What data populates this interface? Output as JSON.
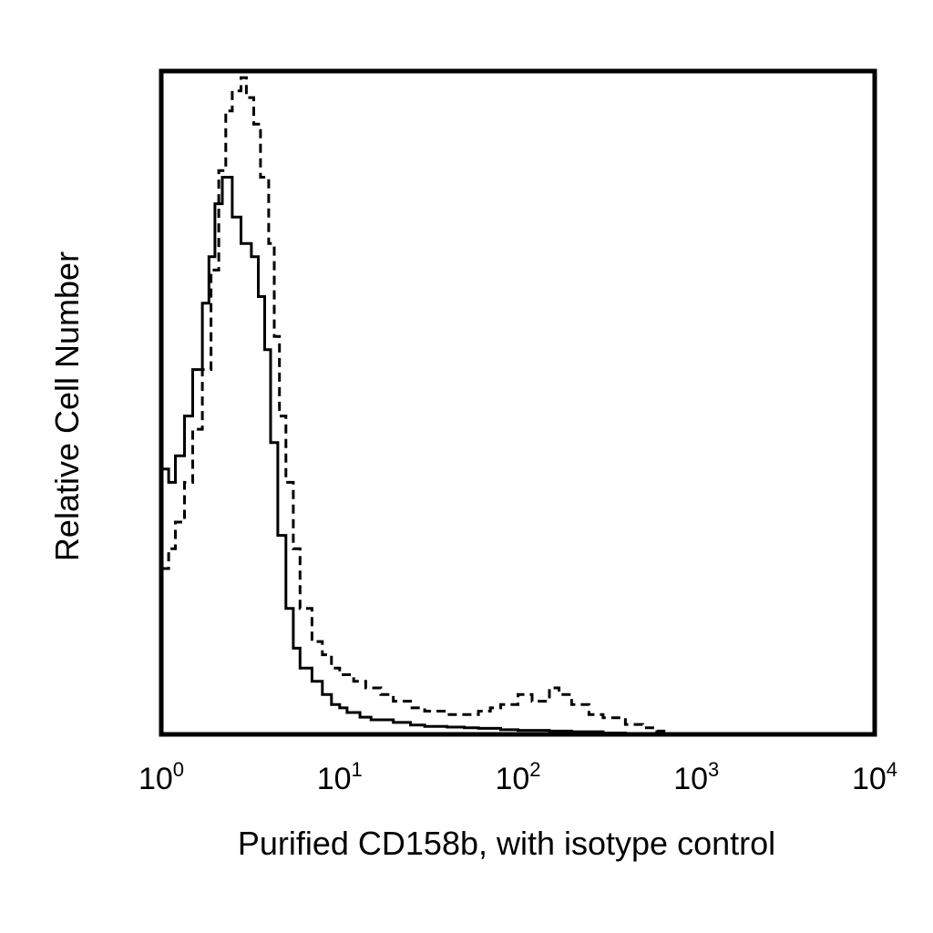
{
  "chart_data": {
    "type": "line",
    "title": "",
    "xlabel": "Purified CD158b, with isotype control",
    "ylabel": "Relative Cell Number",
    "xscale": "log",
    "xlim": [
      1,
      10000
    ],
    "ylim": [
      0,
      100
    ],
    "grid": false,
    "legend": "none",
    "x_ticks": [
      {
        "base": "10",
        "exp": "0",
        "value": 1
      },
      {
        "base": "10",
        "exp": "1",
        "value": 10
      },
      {
        "base": "10",
        "exp": "2",
        "value": 100
      },
      {
        "base": "10",
        "exp": "3",
        "value": 1000
      },
      {
        "base": "10",
        "exp": "4",
        "value": 10000
      }
    ],
    "series": [
      {
        "style": "solid",
        "color": "#000000",
        "x": [
          1.0,
          1.1,
          1.2,
          1.35,
          1.5,
          1.7,
          1.85,
          2.0,
          2.2,
          2.5,
          2.8,
          3.2,
          3.5,
          3.8,
          4.1,
          4.5,
          5.0,
          5.5,
          6.0,
          7.0,
          8.0,
          9.0,
          10,
          11,
          13,
          15,
          20,
          25,
          30,
          40,
          50,
          60,
          80,
          100,
          150,
          200,
          300,
          400
        ],
        "y": [
          40,
          38,
          42,
          48,
          55,
          65,
          72,
          80,
          84,
          78,
          74,
          72,
          66,
          58,
          44,
          30,
          19,
          13,
          10,
          8,
          6,
          4.5,
          4,
          3.3,
          2.6,
          2.2,
          1.8,
          1.4,
          1.2,
          1.1,
          1.0,
          0.9,
          0.7,
          0.6,
          0.5,
          0.4,
          0.2,
          0
        ]
      },
      {
        "style": "dashed",
        "color": "#000000",
        "x": [
          1.0,
          1.1,
          1.2,
          1.35,
          1.5,
          1.7,
          1.9,
          2.1,
          2.3,
          2.5,
          2.8,
          3.0,
          3.3,
          3.6,
          4.0,
          4.3,
          4.6,
          5.0,
          5.5,
          6.0,
          7.0,
          8.0,
          9.0,
          10,
          12,
          14,
          17,
          20,
          25,
          30,
          40,
          50,
          60,
          70,
          80,
          100,
          120,
          150,
          170,
          200,
          250,
          300,
          400,
          500,
          600,
          700
        ],
        "y": [
          25,
          28,
          32,
          38,
          46,
          55,
          70,
          85,
          94,
          97,
          99,
          96,
          92,
          84,
          74,
          60,
          48,
          38,
          28,
          19,
          14,
          12,
          10,
          9,
          8,
          7,
          6,
          5,
          4,
          3.5,
          3,
          3,
          3.5,
          4,
          4.5,
          6,
          5,
          7,
          6,
          4.5,
          3,
          2.5,
          1.5,
          1,
          0.5,
          0
        ]
      }
    ]
  }
}
